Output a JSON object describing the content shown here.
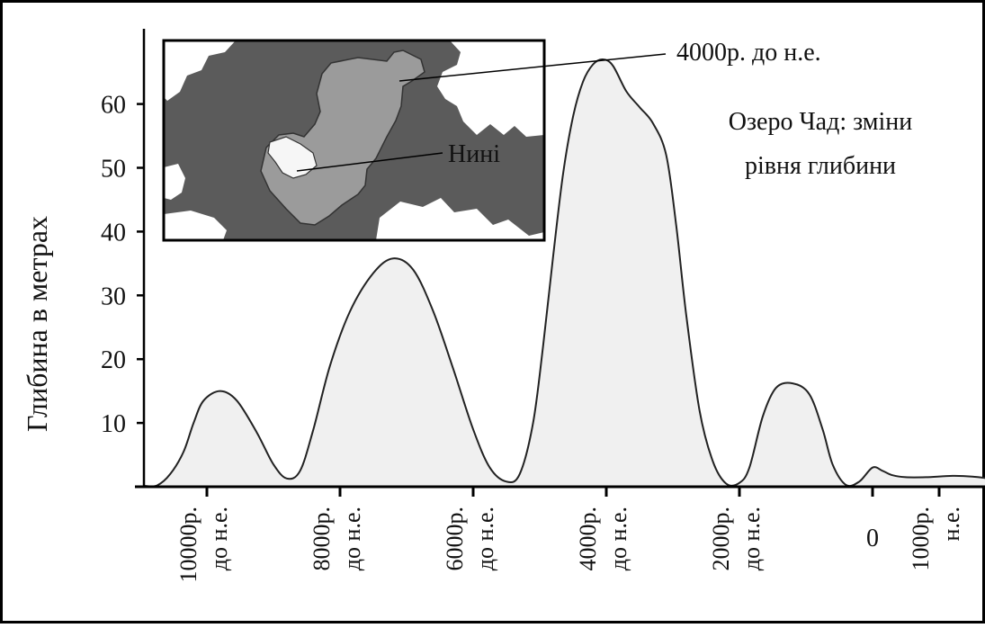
{
  "chart_data": {
    "type": "area",
    "title": "Озеро Чад: зміни рівня глибини",
    "title_lines": [
      "Озеро Чад: зміни",
      "рівня глибини"
    ],
    "ylabel": "Глибина в метрах",
    "xlabel": "",
    "x_unit": "years (negative = до н.е.)",
    "xlim": [
      -11000,
      1900
    ],
    "ylim": [
      0,
      70
    ],
    "y_ticks": [
      10,
      20,
      30,
      40,
      50,
      60
    ],
    "x_ticks": [
      {
        "value": -10000,
        "label": [
          "10000р.",
          "до н.е."
        ]
      },
      {
        "value": -8000,
        "label": [
          "8000р.",
          "до н.е."
        ]
      },
      {
        "value": -6000,
        "label": [
          "6000р.",
          "до н.е."
        ]
      },
      {
        "value": -4000,
        "label": [
          "4000р.",
          "до н.е."
        ]
      },
      {
        "value": -2000,
        "label": [
          "2000р.",
          "до н.е."
        ]
      },
      {
        "value": 0,
        "label": [
          "0"
        ]
      },
      {
        "value": 1000,
        "label": [
          "1000р.",
          "н.е."
        ]
      }
    ],
    "series": [
      {
        "points": [
          [
            -10750,
            0.2
          ],
          [
            -10550,
            2.0
          ],
          [
            -10350,
            5.5
          ],
          [
            -10200,
            10.0
          ],
          [
            -10050,
            13.5
          ],
          [
            -9800,
            15.0
          ],
          [
            -9550,
            13.5
          ],
          [
            -9250,
            8.5
          ],
          [
            -9000,
            3.5
          ],
          [
            -8800,
            1.3
          ],
          [
            -8600,
            2.5
          ],
          [
            -8400,
            9.0
          ],
          [
            -8150,
            19.0
          ],
          [
            -7850,
            27.5
          ],
          [
            -7500,
            33.5
          ],
          [
            -7200,
            35.8
          ],
          [
            -6900,
            34.0
          ],
          [
            -6600,
            27.5
          ],
          [
            -6300,
            18.5
          ],
          [
            -6000,
            9.0
          ],
          [
            -5750,
            3.0
          ],
          [
            -5500,
            0.8
          ],
          [
            -5300,
            2.0
          ],
          [
            -5100,
            10.0
          ],
          [
            -4950,
            22.0
          ],
          [
            -4800,
            36.0
          ],
          [
            -4650,
            49.0
          ],
          [
            -4500,
            58.0
          ],
          [
            -4350,
            63.5
          ],
          [
            -4200,
            66.2
          ],
          [
            -4050,
            67.0
          ],
          [
            -3900,
            66.0
          ],
          [
            -3700,
            62.0
          ],
          [
            -3500,
            59.5
          ],
          [
            -3300,
            57.0
          ],
          [
            -3100,
            52.0
          ],
          [
            -2950,
            41.0
          ],
          [
            -2800,
            27.0
          ],
          [
            -2600,
            12.0
          ],
          [
            -2400,
            4.0
          ],
          [
            -2200,
            0.5
          ],
          [
            -2000,
            0.6
          ],
          [
            -1850,
            3.0
          ],
          [
            -1650,
            11.0
          ],
          [
            -1450,
            15.5
          ],
          [
            -1200,
            16.2
          ],
          [
            -950,
            14.5
          ],
          [
            -750,
            9.0
          ],
          [
            -600,
            3.5
          ],
          [
            -400,
            0.3
          ],
          [
            -200,
            0.8
          ],
          [
            0,
            3.0
          ],
          [
            150,
            2.5
          ],
          [
            300,
            1.8
          ],
          [
            500,
            1.5
          ],
          [
            800,
            1.5
          ],
          [
            1200,
            1.7
          ],
          [
            1500,
            1.6
          ],
          [
            1800,
            1.2
          ]
        ]
      }
    ],
    "inset": {
      "labels": {
        "past": "4000р. до н.е.",
        "now": "Нині"
      }
    },
    "colors": {
      "area_fill": "#f0f0f0",
      "curve": "#222222",
      "frame": "#000000",
      "inset_land": "#5b5b5b",
      "inset_lake_past": "#9b9b9b",
      "inset_lake_now": "#f6f6f6",
      "inset_white": "#ffffff"
    },
    "grid": false,
    "legend": "none"
  }
}
